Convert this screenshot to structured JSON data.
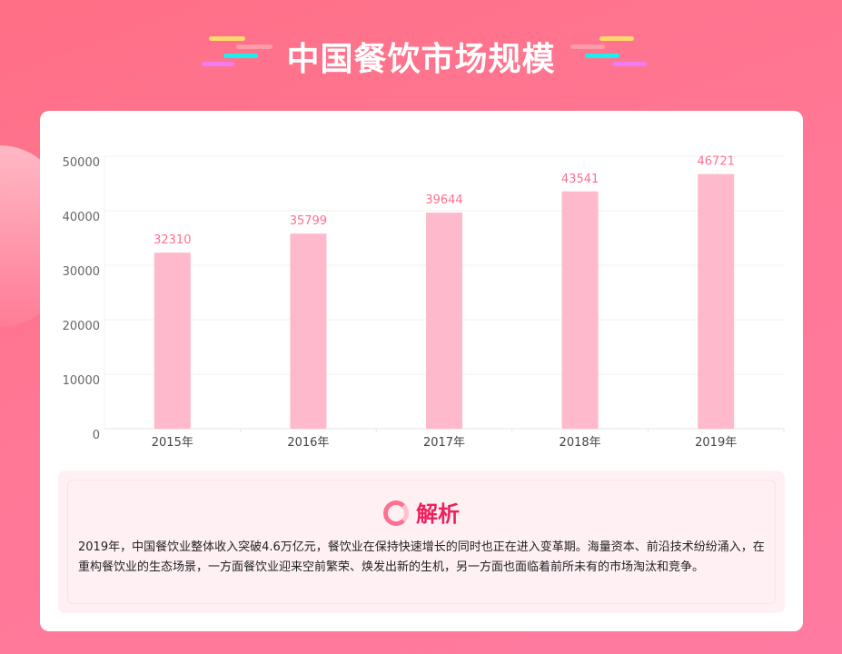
{
  "header": {
    "title": "中国餐饮市场规模"
  },
  "colors": {
    "bar": "#ffb9cc",
    "label": "#ff6f91",
    "accent": "#ee1f5c"
  },
  "chart_data": {
    "type": "bar",
    "categories": [
      "2015年",
      "2016年",
      "2017年",
      "2018年",
      "2019年"
    ],
    "values": [
      32310,
      35799,
      39644,
      43541,
      46721
    ],
    "ylim": [
      0,
      50000
    ],
    "yticks": [
      0,
      10000,
      20000,
      30000,
      40000,
      50000
    ],
    "grid": true,
    "title": "",
    "xlabel": "",
    "ylabel": ""
  },
  "analysis": {
    "heading": "解析",
    "icon": "target-icon",
    "text": "2019年，中国餐饮业整体收入突破4.6万亿元，餐饮业在保持快速增长的同时也正在进入变革期。海量资本、前沿技术纷纷涌入，在重构餐饮业的生态场景，一方面餐饮业迎来空前繁荣、焕发出新的生机，另一方面也面临着前所未有的市场淘汰和竞争。"
  }
}
